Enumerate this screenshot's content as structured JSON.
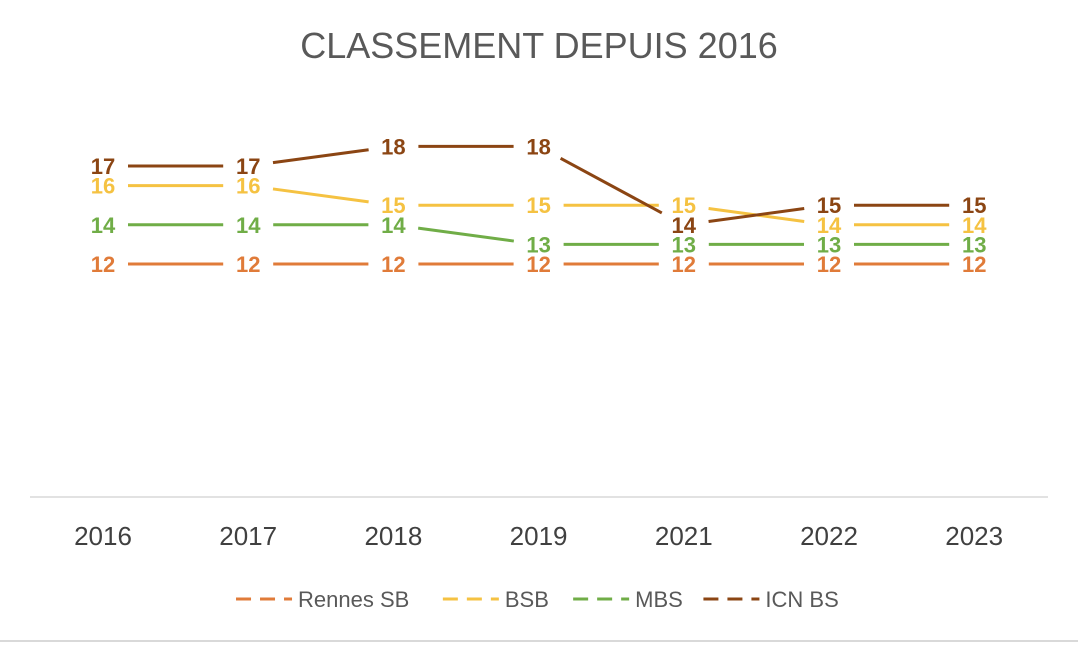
{
  "chart_data": {
    "type": "line",
    "title": "CLASSEMENT DEPUIS 2016",
    "categories": [
      "2016",
      "2017",
      "2018",
      "2019",
      "2021",
      "2022",
      "2023"
    ],
    "series": [
      {
        "name": "Rennes SB",
        "color": "#E07B39",
        "values": [
          12,
          12,
          12,
          12,
          12,
          12,
          12
        ]
      },
      {
        "name": "BSB",
        "color": "#F5C242",
        "values": [
          16,
          16,
          15,
          15,
          15,
          14,
          14
        ]
      },
      {
        "name": "MBS",
        "color": "#70AD47",
        "values": [
          14,
          14,
          14,
          13,
          13,
          13,
          13
        ]
      },
      {
        "name": "ICN BS",
        "color": "#8B4513",
        "values": [
          17,
          17,
          18,
          18,
          14,
          15,
          15
        ]
      }
    ],
    "data_labels": true,
    "legend_position": "bottom",
    "grid": false
  }
}
